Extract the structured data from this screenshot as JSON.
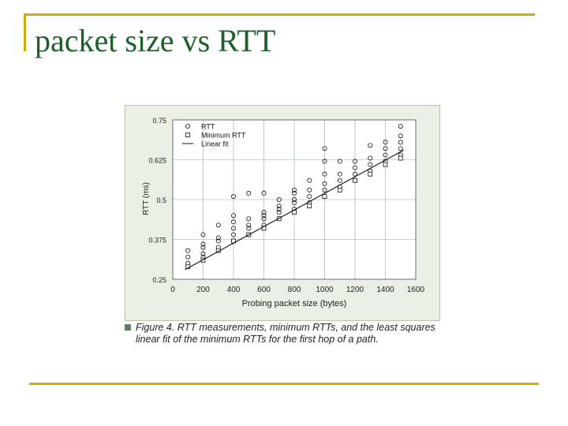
{
  "slide": {
    "title": "packet size vs RTT"
  },
  "caption": {
    "label": "Figure 4.",
    "text": "RTT measurements, minimum RTTs, and the least squares linear fit of the minimum RTTs for the first hop of a path."
  },
  "colors": {
    "title": "#1e5f2c",
    "rule": "#c9ad12",
    "plot_bg": "#eaf0e3"
  },
  "chart_data": {
    "type": "scatter",
    "xlabel": "Probing packet size (bytes)",
    "ylabel": "RTT (ms)",
    "xlim": [
      0,
      1600
    ],
    "ylim": [
      0.25,
      0.75
    ],
    "xticks": [
      "0",
      "200",
      "400",
      "600",
      "800",
      "1000",
      "1200",
      "1400",
      "1600"
    ],
    "yticks": [
      "0.25",
      "0.375",
      "0.5",
      "0.625",
      "0.75"
    ],
    "legend": {
      "placement": "top-left",
      "entries": [
        "RTT",
        "Minimum RTT",
        "Linear fit"
      ]
    },
    "series": [
      {
        "name": "RTT",
        "marker": "circle",
        "points": [
          [
            100,
            0.29
          ],
          [
            100,
            0.3
          ],
          [
            100,
            0.32
          ],
          [
            100,
            0.34
          ],
          [
            200,
            0.32
          ],
          [
            200,
            0.33
          ],
          [
            200,
            0.35
          ],
          [
            200,
            0.36
          ],
          [
            200,
            0.39
          ],
          [
            300,
            0.35
          ],
          [
            300,
            0.37
          ],
          [
            300,
            0.38
          ],
          [
            300,
            0.42
          ],
          [
            400,
            0.37
          ],
          [
            400,
            0.39
          ],
          [
            400,
            0.41
          ],
          [
            400,
            0.43
          ],
          [
            400,
            0.45
          ],
          [
            400,
            0.51
          ],
          [
            500,
            0.39
          ],
          [
            500,
            0.41
          ],
          [
            500,
            0.42
          ],
          [
            500,
            0.44
          ],
          [
            500,
            0.52
          ],
          [
            600,
            0.42
          ],
          [
            600,
            0.44
          ],
          [
            600,
            0.45
          ],
          [
            600,
            0.46
          ],
          [
            600,
            0.52
          ],
          [
            700,
            0.44
          ],
          [
            700,
            0.46
          ],
          [
            700,
            0.47
          ],
          [
            700,
            0.48
          ],
          [
            700,
            0.5
          ],
          [
            800,
            0.47
          ],
          [
            800,
            0.49
          ],
          [
            800,
            0.5
          ],
          [
            800,
            0.52
          ],
          [
            800,
            0.53
          ],
          [
            900,
            0.49
          ],
          [
            900,
            0.51
          ],
          [
            900,
            0.53
          ],
          [
            900,
            0.56
          ],
          [
            1000,
            0.51
          ],
          [
            1000,
            0.53
          ],
          [
            1000,
            0.55
          ],
          [
            1000,
            0.58
          ],
          [
            1000,
            0.62
          ],
          [
            1000,
            0.66
          ],
          [
            1100,
            0.54
          ],
          [
            1100,
            0.56
          ],
          [
            1100,
            0.58
          ],
          [
            1100,
            0.62
          ],
          [
            1200,
            0.56
          ],
          [
            1200,
            0.58
          ],
          [
            1200,
            0.6
          ],
          [
            1200,
            0.62
          ],
          [
            1300,
            0.59
          ],
          [
            1300,
            0.61
          ],
          [
            1300,
            0.63
          ],
          [
            1300,
            0.67
          ],
          [
            1400,
            0.62
          ],
          [
            1400,
            0.64
          ],
          [
            1400,
            0.66
          ],
          [
            1400,
            0.68
          ],
          [
            1500,
            0.64
          ],
          [
            1500,
            0.66
          ],
          [
            1500,
            0.68
          ],
          [
            1500,
            0.7
          ],
          [
            1500,
            0.73
          ]
        ]
      },
      {
        "name": "Minimum RTT",
        "marker": "square",
        "points": [
          [
            100,
            0.29
          ],
          [
            200,
            0.31
          ],
          [
            300,
            0.34
          ],
          [
            400,
            0.37
          ],
          [
            500,
            0.39
          ],
          [
            600,
            0.41
          ],
          [
            700,
            0.44
          ],
          [
            800,
            0.46
          ],
          [
            900,
            0.48
          ],
          [
            1000,
            0.51
          ],
          [
            1100,
            0.53
          ],
          [
            1200,
            0.56
          ],
          [
            1300,
            0.58
          ],
          [
            1400,
            0.61
          ],
          [
            1500,
            0.63
          ]
        ]
      },
      {
        "name": "Linear fit",
        "type": "line",
        "points": [
          [
            80,
            0.28
          ],
          [
            1520,
            0.655
          ]
        ]
      }
    ]
  }
}
